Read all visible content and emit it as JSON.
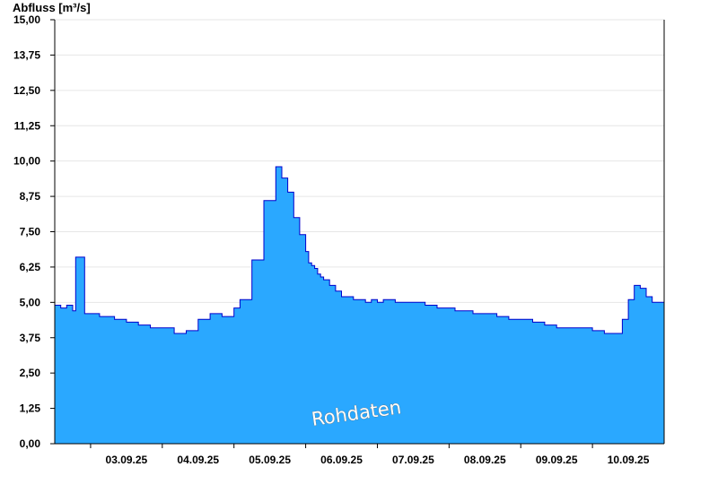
{
  "chart_data": {
    "type": "area",
    "ylabel": "Abfluss [m³/s]",
    "ylim": [
      0,
      15
    ],
    "yticks": [
      "0,00",
      "1,25",
      "2,50",
      "3,75",
      "5,00",
      "6,25",
      "7,50",
      "8,75",
      "10,00",
      "11,25",
      "12,50",
      "13,75",
      "15,00"
    ],
    "xlim_days": [
      "02.09.25 12:00",
      "10.09.25 24:00"
    ],
    "categories": [
      "03.09.25",
      "04.09.25",
      "05.09.25",
      "06.09.25",
      "07.09.25",
      "08.09.25",
      "09.09.25",
      "10.09.25"
    ],
    "watermark": "Rohdaten",
    "grid": "horizontal",
    "colors": {
      "fill": "#2aa8ff",
      "line": "#0000cc",
      "grid": "#e6e6e6",
      "axis": "#000000",
      "divider": "#1a5a8a"
    },
    "series": [
      {
        "x": [
          "02.09.25 12:00",
          "02.09.25 14:00",
          "02.09.25 16:00",
          "02.09.25 18:00",
          "02.09.25 19:00",
          "02.09.25 21:00",
          "02.09.25 22:00",
          "03.09.25 01:00",
          "03.09.25 03:00",
          "03.09.25 05:00",
          "03.09.25 08:00",
          "03.09.25 12:00",
          "03.09.25 16:00",
          "03.09.25 20:00",
          "04.09.25 00:00",
          "04.09.25 04:00",
          "04.09.25 08:00",
          "04.09.25 12:00",
          "04.09.25 16:00",
          "04.09.25 20:00",
          "05.09.25 00:00",
          "05.09.25 02:00",
          "05.09.25 06:00",
          "05.09.25 10:00",
          "05.09.25 14:00",
          "05.09.25 16:00",
          "05.09.25 18:00",
          "05.09.25 20:00",
          "05.09.25 22:00",
          "06.09.25 00:00",
          "06.09.25 01:00",
          "06.09.25 02:00",
          "06.09.25 03:00",
          "06.09.25 04:00",
          "06.09.25 05:00",
          "06.09.25 06:00",
          "06.09.25 08:00",
          "06.09.25 10:00",
          "06.09.25 12:00",
          "06.09.25 14:00",
          "06.09.25 16:00",
          "06.09.25 18:00",
          "06.09.25 20:00",
          "06.09.25 22:00",
          "07.09.25 00:00",
          "07.09.25 02:00",
          "07.09.25 04:00",
          "07.09.25 06:00",
          "07.09.25 08:00",
          "07.09.25 10:00",
          "07.09.25 12:00",
          "07.09.25 14:00",
          "07.09.25 16:00",
          "07.09.25 18:00",
          "07.09.25 20:00",
          "07.09.25 22:00",
          "08.09.25 00:00",
          "08.09.25 02:00",
          "08.09.25 04:00",
          "08.09.25 08:00",
          "08.09.25 12:00",
          "08.09.25 16:00",
          "08.09.25 20:00",
          "09.09.25 00:00",
          "09.09.25 04:00",
          "09.09.25 08:00",
          "09.09.25 12:00",
          "09.09.25 16:00",
          "09.09.25 20:00",
          "10.09.25 00:00",
          "10.09.25 04:00",
          "10.09.25 08:00",
          "10.09.25 10:00",
          "10.09.25 12:00",
          "10.09.25 14:00",
          "10.09.25 16:00",
          "10.09.25 18:00",
          "10.09.25 20:00",
          "10.09.25 22:00",
          "10.09.25 24:00"
        ],
        "y": [
          4.9,
          4.8,
          4.9,
          4.7,
          6.6,
          6.6,
          4.6,
          4.6,
          4.5,
          4.5,
          4.4,
          4.3,
          4.2,
          4.1,
          4.1,
          3.9,
          4.0,
          4.4,
          4.6,
          4.5,
          4.8,
          5.1,
          6.5,
          8.6,
          9.8,
          9.4,
          8.9,
          8.0,
          7.4,
          6.8,
          6.4,
          6.3,
          6.2,
          6.0,
          5.9,
          5.8,
          5.6,
          5.4,
          5.2,
          5.2,
          5.1,
          5.1,
          5.0,
          5.1,
          5.0,
          5.1,
          5.1,
          5.0,
          5.0,
          5.0,
          5.0,
          5.0,
          4.9,
          4.9,
          4.8,
          4.8,
          4.8,
          4.7,
          4.7,
          4.6,
          4.6,
          4.5,
          4.4,
          4.4,
          4.3,
          4.2,
          4.1,
          4.1,
          4.1,
          4.0,
          3.9,
          3.9,
          4.4,
          5.1,
          5.6,
          5.5,
          5.2,
          5.0,
          5.0,
          5.1
        ]
      }
    ]
  }
}
